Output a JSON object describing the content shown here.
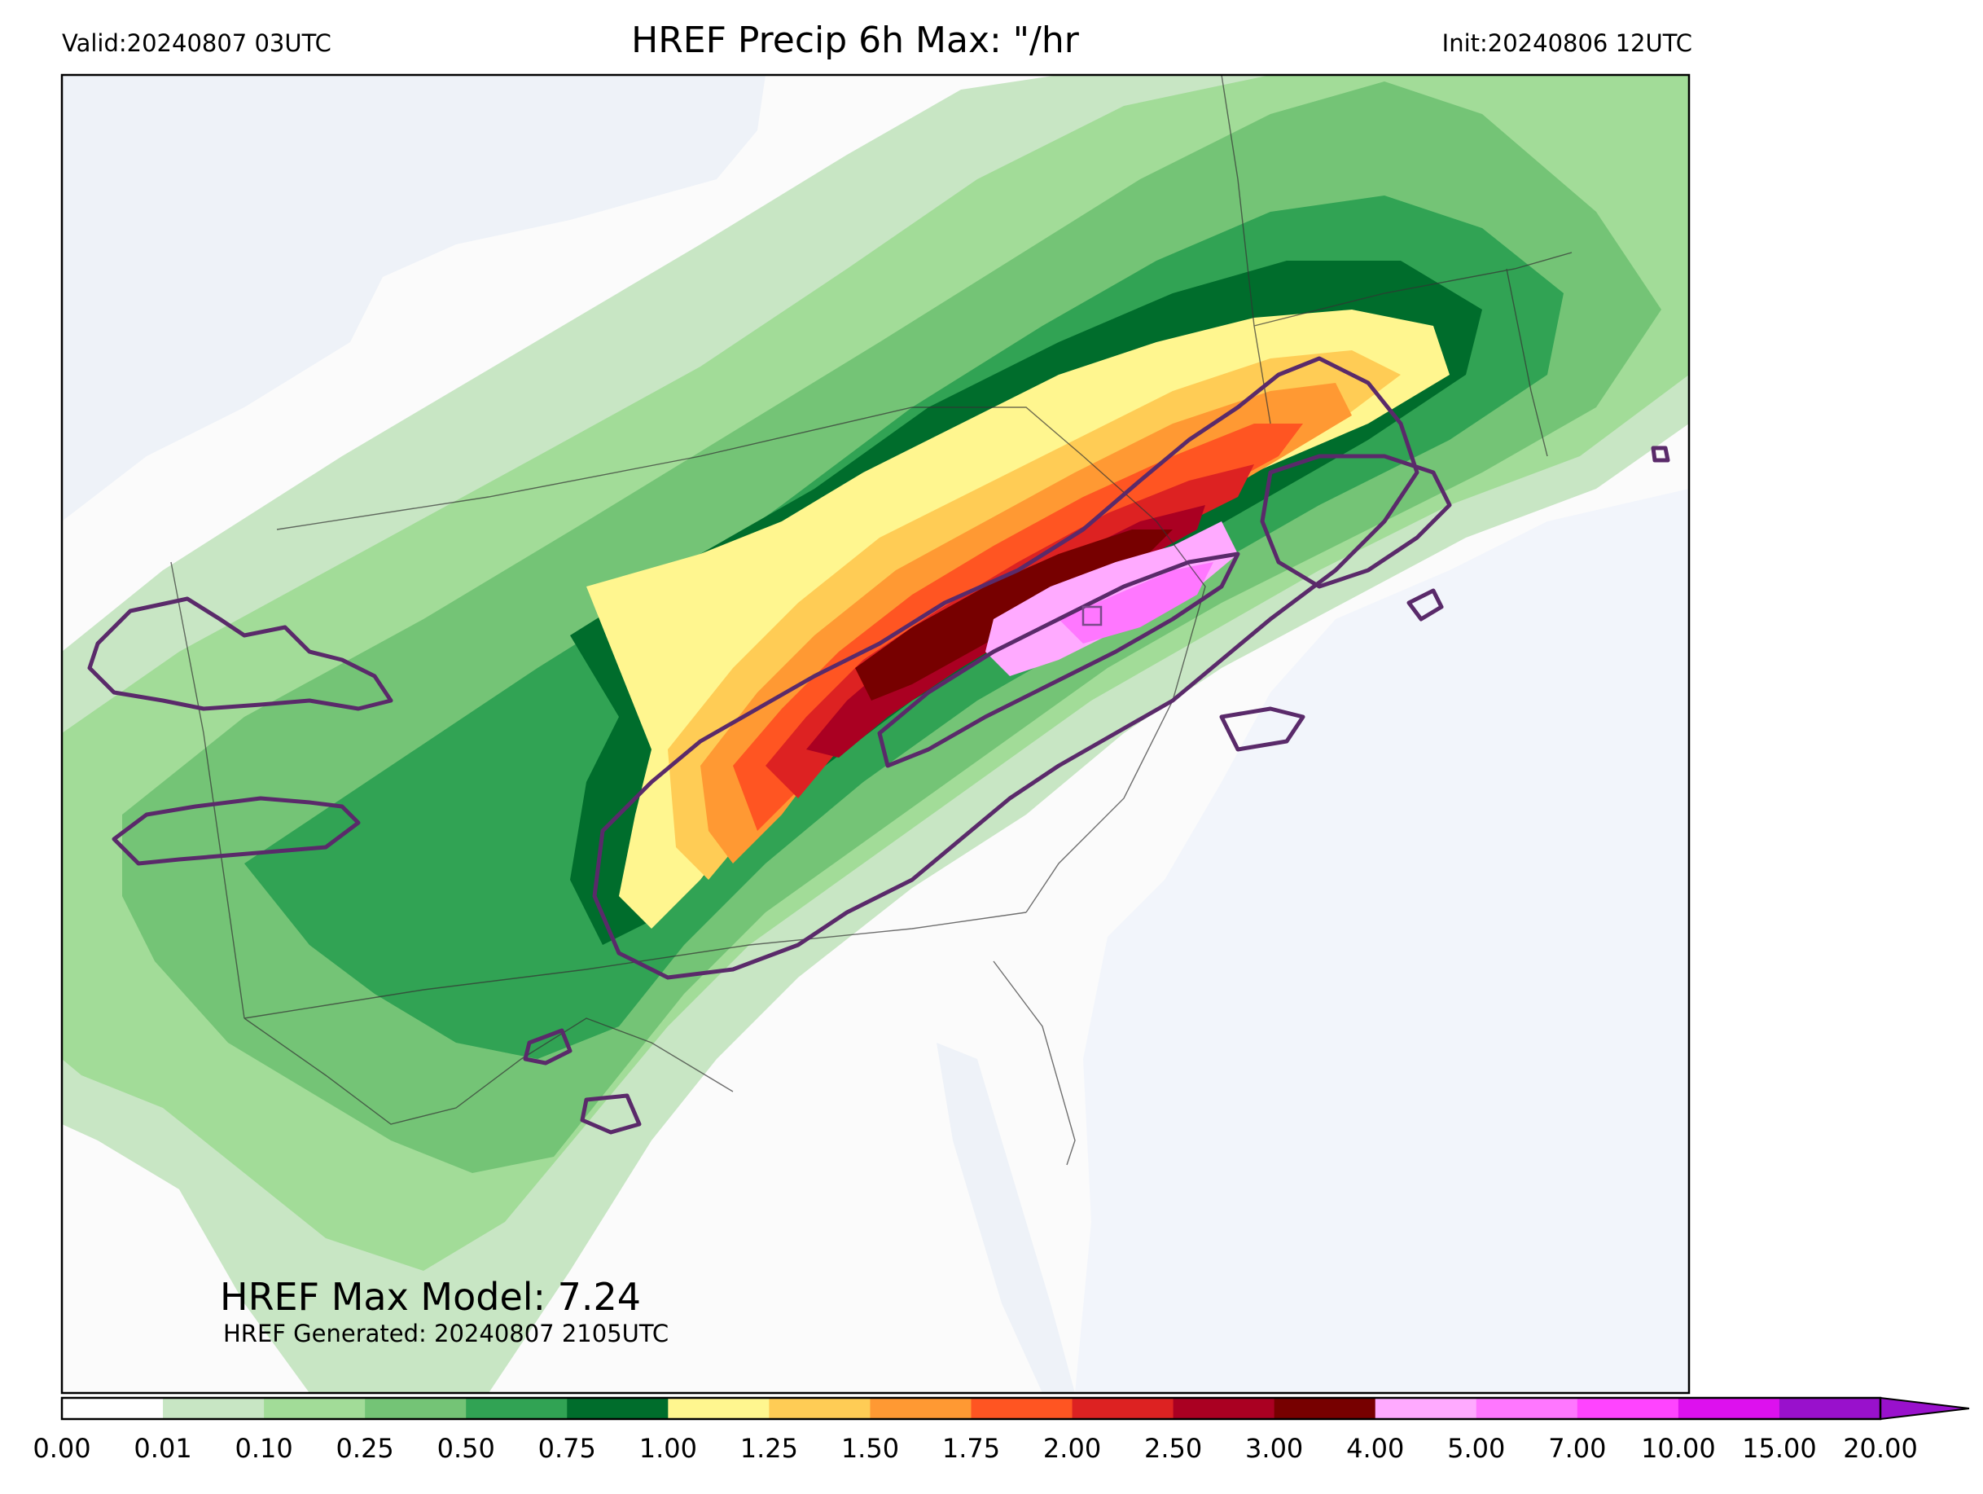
{
  "header": {
    "valid": "Valid:20240807 03UTC",
    "title": "HREF Precip 6h Max: \"/hr",
    "init": "Init:20240806 12UTC"
  },
  "annotations": {
    "max_model": "HREF Max Model: 7.24",
    "generated": "HREF Generated: 20240807 2105UTC"
  },
  "colorbar": {
    "levels": [
      "0.00",
      "0.01",
      "0.10",
      "0.25",
      "0.50",
      "0.75",
      "1.00",
      "1.25",
      "1.50",
      "1.75",
      "2.00",
      "2.50",
      "3.00",
      "4.00",
      "5.00",
      "7.00",
      "10.00",
      "15.00",
      "20.00"
    ],
    "colors": [
      "#ffffff",
      "#c8e6c4",
      "#a2dc98",
      "#74c476",
      "#31a354",
      "#006d2c",
      "#fff68f",
      "#ffcc55",
      "#ff9933",
      "#ff5522",
      "#dd2222",
      "#aa0022",
      "#770000",
      "#ffaaff",
      "#ff77ff",
      "#ff44ff",
      "#dd11ee",
      "#9911cc"
    ],
    "extend": "max"
  },
  "colors": {
    "ocean": "#f2f5fb",
    "land": "#fbfbfb",
    "contour": "#5a2a6a",
    "border": "#333333"
  }
}
